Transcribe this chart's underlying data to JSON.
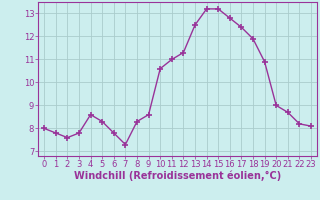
{
  "x": [
    0,
    1,
    2,
    3,
    4,
    5,
    6,
    7,
    8,
    9,
    10,
    11,
    12,
    13,
    14,
    15,
    16,
    17,
    18,
    19,
    20,
    21,
    22,
    23
  ],
  "y": [
    8.0,
    7.8,
    7.6,
    7.8,
    8.6,
    8.3,
    7.8,
    7.3,
    8.3,
    8.6,
    10.6,
    11.0,
    11.3,
    12.5,
    13.2,
    13.2,
    12.8,
    12.4,
    11.9,
    10.9,
    9.0,
    8.7,
    8.2,
    8.1
  ],
  "line_color": "#993399",
  "marker": "+",
  "marker_size": 5,
  "bg_color": "#cceeee",
  "grid_color": "#aacccc",
  "xlabel": "Windchill (Refroidissement éolien,°C)",
  "xlim": [
    -0.5,
    23.5
  ],
  "ylim": [
    6.8,
    13.5
  ],
  "yticks": [
    7,
    8,
    9,
    10,
    11,
    12,
    13
  ],
  "xticks": [
    0,
    1,
    2,
    3,
    4,
    5,
    6,
    7,
    8,
    9,
    10,
    11,
    12,
    13,
    14,
    15,
    16,
    17,
    18,
    19,
    20,
    21,
    22,
    23
  ],
  "tick_color": "#993399",
  "label_color": "#993399",
  "axis_color": "#993399",
  "font_size": 6,
  "xlabel_fontsize": 7,
  "line_width": 1.0,
  "marker_edge_width": 1.2
}
